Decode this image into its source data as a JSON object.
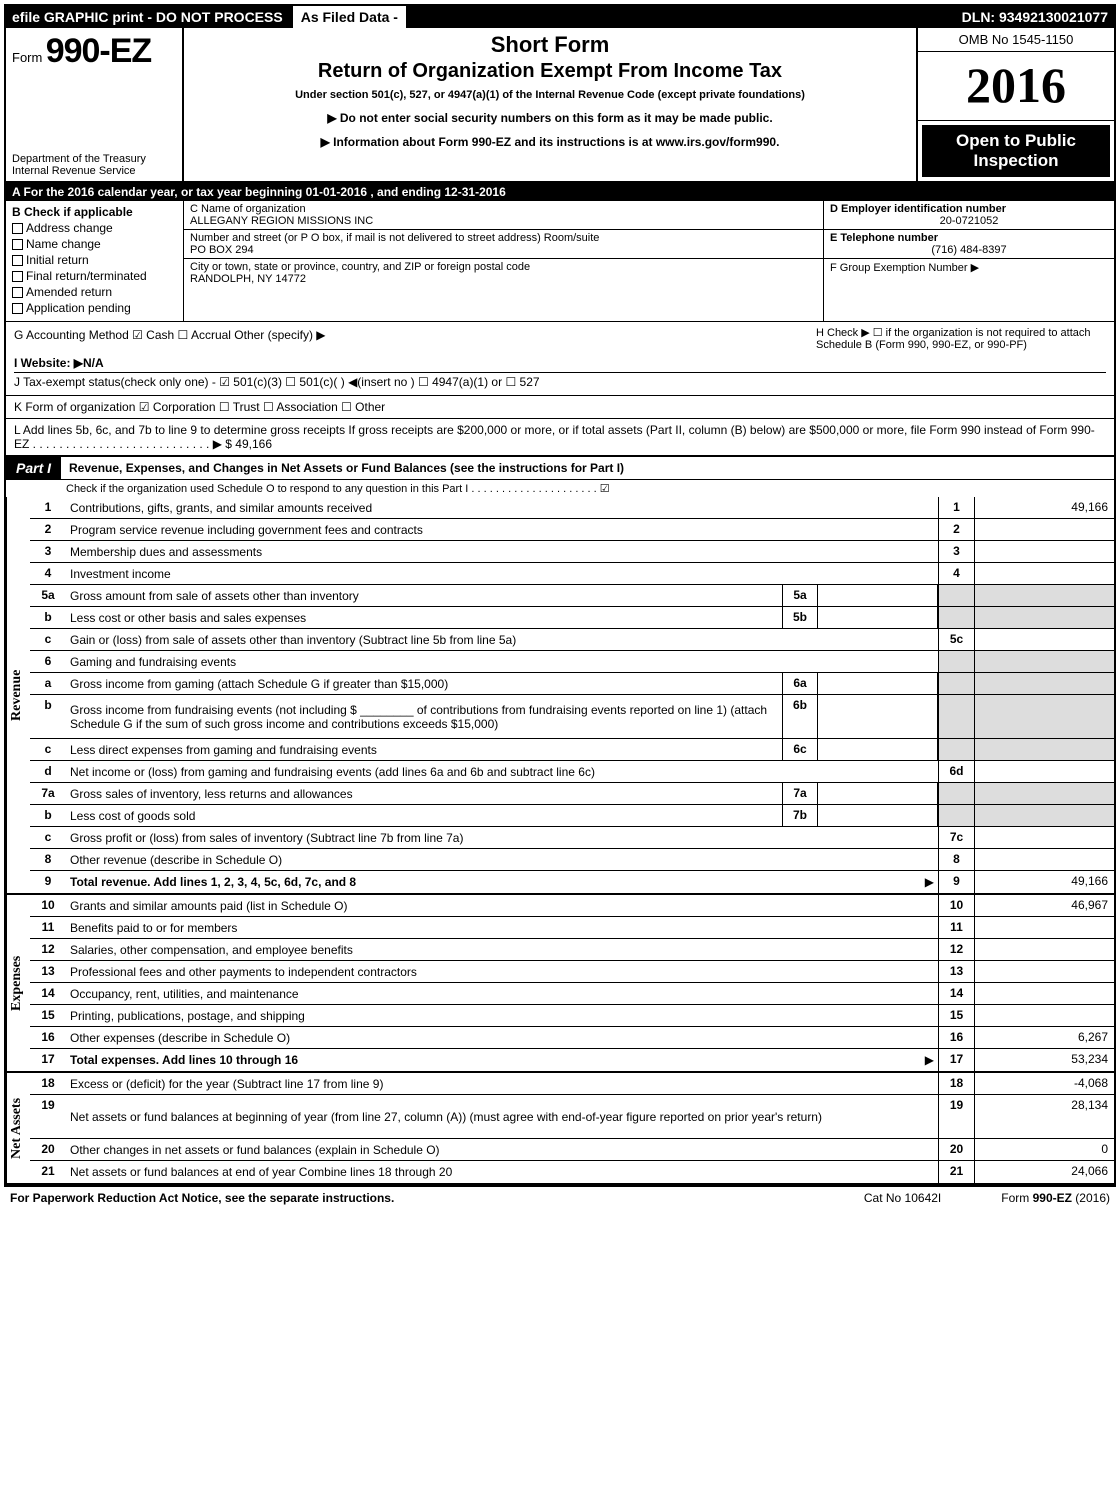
{
  "colors": {
    "black": "#000000",
    "white": "#ffffff",
    "shade": "#dddddd"
  },
  "topbar": {
    "efile": "efile GRAPHIC print - DO NOT PROCESS",
    "asfiled": "As Filed Data -",
    "dln": "DLN: 93492130021077"
  },
  "header": {
    "form_prefix": "Form",
    "form_number": "990-EZ",
    "short_form": "Short Form",
    "title": "Return of Organization Exempt From Income Tax",
    "under": "Under section 501(c), 527, or 4947(a)(1) of the Internal Revenue Code (except private foundations)",
    "note1": "▶ Do not enter social security numbers on this form as it may be made public.",
    "note2": "▶ Information about Form 990-EZ and its instructions is at www.irs.gov/form990.",
    "dept1": "Department of the Treasury",
    "dept2": "Internal Revenue Service",
    "omb": "OMB No 1545-1150",
    "year": "2016",
    "open_public": "Open to Public Inspection"
  },
  "rowA": "A  For the 2016 calendar year, or tax year beginning 01-01-2016              , and ending 12-31-2016",
  "secB": {
    "label": "B  Check if applicable",
    "items": [
      "Address change",
      "Name change",
      "Initial return",
      "Final return/terminated",
      "Amended return",
      "Application pending"
    ]
  },
  "secC": {
    "c_label": "C Name of organization",
    "c_name": "ALLEGANY REGION MISSIONS INC",
    "addr_label": "Number and street (or P O box, if mail is not delivered to street address)   Room/suite",
    "addr": "PO BOX 294",
    "city_label": "City or town, state or province, country, and ZIP or foreign postal code",
    "city": "RANDOLPH, NY  14772"
  },
  "secD": {
    "d_label": "D Employer identification number",
    "d_val": "20-0721052",
    "e_label": "E Telephone number",
    "e_val": "(716) 484-8397",
    "f_label": "F Group Exemption Number   ▶"
  },
  "rowG": {
    "g": "G Accounting Method    ☑ Cash   ☐ Accrual   Other (specify) ▶",
    "h": "H   Check ▶   ☐  if the organization is not required to attach Schedule B (Form 990, 990-EZ, or 990-PF)",
    "i": "I Website: ▶N/A",
    "j": "J Tax-exempt status(check only one) - ☑ 501(c)(3)  ☐ 501(c)(  ) ◀(insert no ) ☐ 4947(a)(1) or ☐ 527"
  },
  "rowK": "K Form of organization    ☑ Corporation  ☐ Trust  ☐ Association  ☐ Other",
  "rowL": {
    "text": "L Add lines 5b, 6c, and 7b to line 9 to determine gross receipts  If gross receipts are $200,000 or more, or if total assets (Part II, column (B) below) are $500,000 or more, file Form 990 instead of Form 990-EZ  .  .  .  .  .  .  .  .  .  .  .  .  .  .  .  .  .  .  .  .  .  .  .  .  .  .  .  ▶ $",
    "amount": "49,166"
  },
  "partI": {
    "label": "Part I",
    "title": "Revenue, Expenses, and Changes in Net Assets or Fund Balances (see the instructions for Part I)",
    "note": "Check if the organization used Schedule O to respond to any question in this Part I .  .  .  .  .  .  .  .  .  .  .  .  .  .  .  .  .  .  .  .  . ☑"
  },
  "sections": {
    "revenue": "Revenue",
    "expenses": "Expenses",
    "netassets": "Net Assets"
  },
  "lines": [
    {
      "n": "1",
      "d": "Contributions, gifts, grants, and similar amounts received",
      "rn": "1",
      "ra": "49,166"
    },
    {
      "n": "2",
      "d": "Program service revenue including government fees and contracts",
      "rn": "2",
      "ra": ""
    },
    {
      "n": "3",
      "d": "Membership dues and assessments",
      "rn": "3",
      "ra": ""
    },
    {
      "n": "4",
      "d": "Investment income",
      "rn": "4",
      "ra": ""
    },
    {
      "n": "5a",
      "d": "Gross amount from sale of assets other than inventory",
      "mn": "5a",
      "ma": "",
      "shadeR": true
    },
    {
      "n": "b",
      "d": "Less  cost or other basis and sales expenses",
      "mn": "5b",
      "ma": "",
      "shadeR": true
    },
    {
      "n": "c",
      "d": "Gain or (loss) from sale of assets other than inventory (Subtract line 5b from line 5a)",
      "rn": "5c",
      "ra": ""
    },
    {
      "n": "6",
      "d": "Gaming and fundraising events",
      "shadeR": true,
      "noR": true
    },
    {
      "n": "a",
      "d": "Gross income from gaming (attach Schedule G if greater than $15,000)",
      "mn": "6a",
      "ma": "",
      "shadeR": true
    },
    {
      "n": "b",
      "d": "Gross income from fundraising events (not including $ ________ of contributions from fundraising events reported on line 1) (attach Schedule G if the sum of such gross income and contributions exceeds $15,000)",
      "mn": "6b",
      "ma": "",
      "shadeR": true,
      "tall": true
    },
    {
      "n": "c",
      "d": "Less  direct expenses from gaming and fundraising events",
      "mn": "6c",
      "ma": "",
      "shadeR": true
    },
    {
      "n": "d",
      "d": "Net income or (loss) from gaming and fundraising events (add lines 6a and 6b and subtract line 6c)",
      "rn": "6d",
      "ra": ""
    },
    {
      "n": "7a",
      "d": "Gross sales of inventory, less returns and allowances",
      "mn": "7a",
      "ma": "",
      "shadeR": true
    },
    {
      "n": "b",
      "d": "Less  cost of goods sold",
      "mn": "7b",
      "ma": "",
      "shadeR": true
    },
    {
      "n": "c",
      "d": "Gross profit or (loss) from sales of inventory (Subtract line 7b from line 7a)",
      "rn": "7c",
      "ra": ""
    },
    {
      "n": "8",
      "d": "Other revenue (describe in Schedule O)",
      "rn": "8",
      "ra": ""
    },
    {
      "n": "9",
      "d": "Total revenue. Add lines 1, 2, 3, 4, 5c, 6d, 7c, and 8",
      "rn": "9",
      "ra": "49,166",
      "bold": true,
      "arrow": true
    }
  ],
  "exp_lines": [
    {
      "n": "10",
      "d": "Grants and similar amounts paid (list in Schedule O)",
      "rn": "10",
      "ra": "46,967"
    },
    {
      "n": "11",
      "d": "Benefits paid to or for members",
      "rn": "11",
      "ra": ""
    },
    {
      "n": "12",
      "d": "Salaries, other compensation, and employee benefits",
      "rn": "12",
      "ra": ""
    },
    {
      "n": "13",
      "d": "Professional fees and other payments to independent contractors",
      "rn": "13",
      "ra": ""
    },
    {
      "n": "14",
      "d": "Occupancy, rent, utilities, and maintenance",
      "rn": "14",
      "ra": ""
    },
    {
      "n": "15",
      "d": "Printing, publications, postage, and shipping",
      "rn": "15",
      "ra": ""
    },
    {
      "n": "16",
      "d": "Other expenses (describe in Schedule O)",
      "rn": "16",
      "ra": "6,267"
    },
    {
      "n": "17",
      "d": "Total expenses. Add lines 10 through 16",
      "rn": "17",
      "ra": "53,234",
      "bold": true,
      "arrow": true
    }
  ],
  "na_lines": [
    {
      "n": "18",
      "d": "Excess or (deficit) for the year (Subtract line 17 from line 9)",
      "rn": "18",
      "ra": "-4,068"
    },
    {
      "n": "19",
      "d": "Net assets or fund balances at beginning of year (from line 27, column (A)) (must agree with end-of-year figure reported on prior year's return)",
      "rn": "19",
      "ra": "28,134",
      "tall": true
    },
    {
      "n": "20",
      "d": "Other changes in net assets or fund balances (explain in Schedule O)",
      "rn": "20",
      "ra": "0"
    },
    {
      "n": "21",
      "d": "Net assets or fund balances at end of year  Combine lines 18 through 20",
      "rn": "21",
      "ra": "24,066"
    }
  ],
  "footer": {
    "f1": "For Paperwork Reduction Act Notice, see the separate instructions.",
    "f2": "Cat No  10642I",
    "f3": "Form 990-EZ (2016)"
  }
}
